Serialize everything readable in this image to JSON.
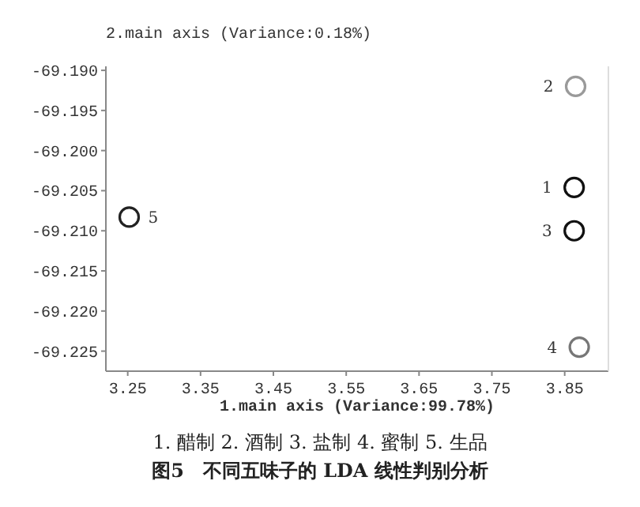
{
  "chart_data": {
    "type": "scatter",
    "title": "图5　不同五味子的 LDA 线性判别分析",
    "xlabel": "1.main axis (Variance:99.78%)",
    "ylabel": "2.main axis (Variance:0.18%)",
    "x": [
      3.863,
      3.865,
      3.863,
      3.87,
      3.252
    ],
    "series": [
      {
        "values": [
          -69.2046,
          -69.192,
          -69.21,
          -69.2245,
          -69.2083
        ],
        "colors": [
          "#111111",
          "#9a9a9a",
          "#111111",
          "#777777",
          "#222222"
        ]
      }
    ],
    "marker": "circle",
    "grid": false,
    "xlim": [
      3.22,
      3.91
    ],
    "xticks": [
      3.25,
      3.35,
      3.45,
      3.55,
      3.65,
      3.75,
      3.85
    ],
    "ylim": [
      -69.2275,
      -69.1895
    ],
    "yticks": [
      {
        "value": -69.19,
        "label": "-69.190"
      },
      {
        "value": -69.195,
        "label": "-69.195"
      },
      {
        "value": -69.2,
        "label": "-69.200"
      },
      {
        "value": -69.205,
        "label": "-69.205"
      },
      {
        "value": -69.21,
        "label": "-69.210"
      },
      {
        "value": -69.215,
        "label": "-69.215"
      },
      {
        "value": -69.22,
        "label": "-69.220"
      },
      {
        "value": -69.225,
        "label": "-69.225"
      }
    ],
    "annotations": [
      {
        "text": "1",
        "x": 3.863,
        "y": -69.2046
      },
      {
        "text": "2",
        "x": 3.865,
        "y": -69.192
      },
      {
        "text": "3",
        "x": 3.863,
        "y": -69.21
      },
      {
        "text": "4",
        "x": 3.87,
        "y": -69.2245
      },
      {
        "text": "5",
        "x": 3.252,
        "y": -69.2083
      },
      "1. 醋制 2. 酒制 3. 盐制 4. 蜜制 5. 生品"
    ]
  }
}
